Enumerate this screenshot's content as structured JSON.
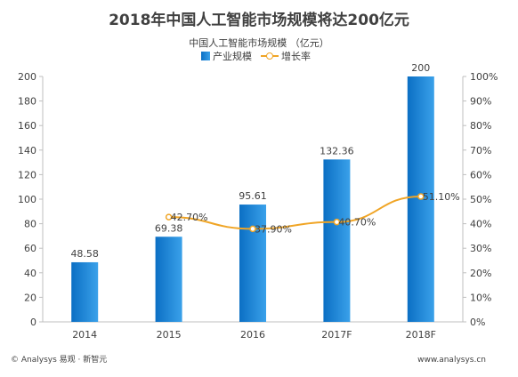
{
  "chart_data": {
    "type": "bar",
    "title": "2018年中国人工智能市场规模将达200亿元",
    "subtitle": "中国人工智能市场规模 （亿元）",
    "categories": [
      "2014",
      "2015",
      "2016",
      "2017F",
      "2018F"
    ],
    "series": [
      {
        "name": "产业规模",
        "type": "bar",
        "axis": "left",
        "values": [
          48.58,
          69.38,
          95.61,
          132.36,
          200
        ],
        "labels": [
          "48.58",
          "69.38",
          "95.61",
          "132.36",
          "200"
        ]
      },
      {
        "name": "增长率",
        "type": "line",
        "axis": "right",
        "values": [
          null,
          42.7,
          37.9,
          40.7,
          51.1
        ],
        "labels": [
          "",
          "42.70%",
          "37.90%",
          "40.70%",
          "51.10%"
        ]
      }
    ],
    "y_left": {
      "ylim": [
        0,
        200
      ],
      "ticks": [
        0,
        20,
        40,
        60,
        80,
        100,
        120,
        140,
        160,
        180,
        200
      ]
    },
    "y_right": {
      "ylim": [
        0,
        100
      ],
      "ticks": [
        "0%",
        "10%",
        "20%",
        "30%",
        "40%",
        "50%",
        "60%",
        "70%",
        "80%",
        "90%",
        "100%"
      ]
    },
    "legend_position": "top-center",
    "grid": false,
    "colors": {
      "bar": "#0e78d2",
      "bar_light": "#3aa1ea",
      "line": "#f0a526"
    }
  },
  "footer": {
    "left": "© Analysys 易观 · 新智元",
    "right": "www.analysys.cn"
  }
}
